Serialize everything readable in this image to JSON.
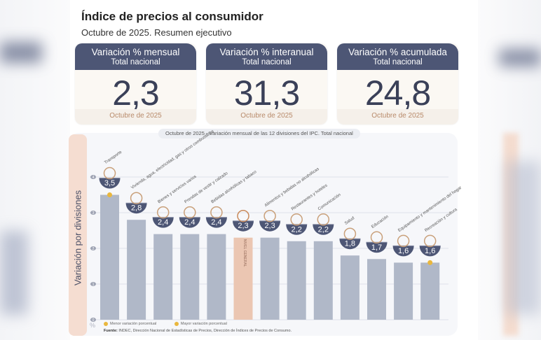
{
  "header": {
    "title": "Índice de precios al consumidor",
    "subtitle": "Octubre de 2025. Resumen ejecutivo"
  },
  "cards": [
    {
      "title": "Variación % mensual",
      "scope": "Total nacional",
      "value": "2,3",
      "period": "Octubre de 2025"
    },
    {
      "title": "Variación % interanual",
      "scope": "Total nacional",
      "value": "31,3",
      "period": "Octubre de 2025"
    },
    {
      "title": "Variación % acumulada",
      "scope": "Total nacional",
      "value": "24,8",
      "period": "Octubre de 2025"
    }
  ],
  "colors": {
    "card_header": "#4d5675",
    "bar": "#b0b8c8",
    "bar_general": "#ebc6b2",
    "badge": "#4d5675",
    "marker": "#e9b73e",
    "ylabel_strip": "#f5ddd1"
  },
  "chart_data": {
    "type": "bar",
    "title": "Octubre de 2025 - Variación mensual de las 12 divisiones del IPC. Total nacional",
    "ylabel": "Variación por divisiones",
    "yunit": "%",
    "ylim": [
      0,
      4
    ],
    "yticks": [
      0,
      1,
      2,
      3,
      4
    ],
    "grid": true,
    "categories": [
      "Transporte",
      "Vivienda, agua, electricidad, gas y otros combustibles",
      "Bienes y servicios varios",
      "Prendas de vestir y calzado",
      "Bebidas alcohólicas y tabaco",
      "Nivel general",
      "Alimentos y bebidas no alcohólicas",
      "Restaurantes y hoteles",
      "Comunicación",
      "Salud",
      "Educación",
      "Equipamiento y mantenimiento del hogar",
      "Recreación y cultura"
    ],
    "values": [
      3.5,
      2.8,
      2.4,
      2.4,
      2.4,
      2.3,
      2.3,
      2.2,
      2.2,
      1.8,
      1.7,
      1.6,
      1.6
    ],
    "value_labels": [
      "3,5",
      "2,8",
      "2,4",
      "2,4",
      "2,4",
      "2,3",
      "2,3",
      "2,2",
      "2,2",
      "1,8",
      "1,7",
      "1,6",
      "1,6"
    ],
    "highlight_label": "NIVEL GENERAL",
    "highlight_index": 5,
    "max_marker_index": 0,
    "min_marker_index": 12,
    "legend": [
      {
        "label": "Menor variación porcentual"
      },
      {
        "label": "Mayor variación porcentual"
      }
    ],
    "source_label": "Fuente:",
    "source": "INDEC, Dirección Nacional de Estadísticas de Precios, Dirección de Índices de Precios de Consumo."
  }
}
